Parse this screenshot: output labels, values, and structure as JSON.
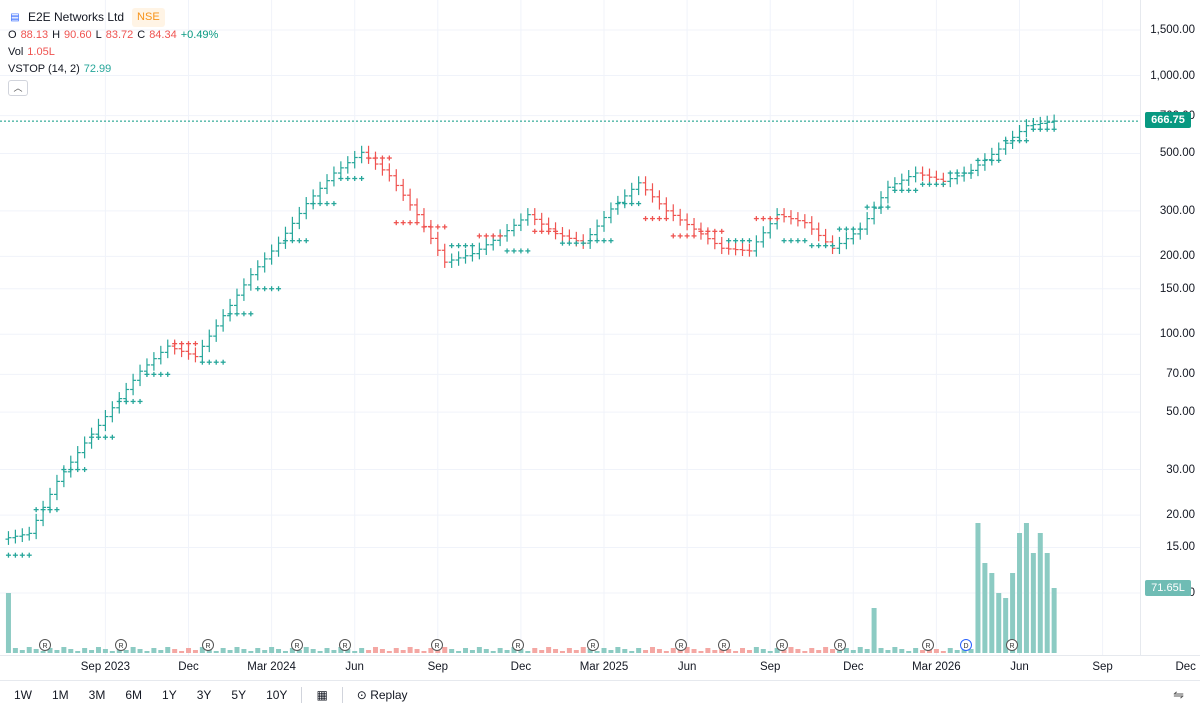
{
  "header": {
    "symbol_icon": "bar-chart-icon",
    "title": "E2E Networks Ltd",
    "exchange": "NSE",
    "o_label": "O",
    "o_value": "88.13",
    "h_label": "H",
    "h_value": "90.60",
    "l_label": "L",
    "l_value": "83.72",
    "c_label": "C",
    "c_value": "84.34",
    "change": "+0.49%",
    "vol_label": "Vol",
    "vol_value": "1.05L",
    "vstop_label": "VSTOP (14, 2)",
    "vstop_value": "72.99",
    "collapse_icon": "chevron-up-icon"
  },
  "price_tag": "666.75",
  "volume_tag": "71.65L",
  "colors": {
    "up": "#26a69a",
    "down": "#ef5350",
    "up_vol": "#8ccbc3",
    "down_vol": "#f4a7a3",
    "accent": "#089981"
  },
  "toolbar": {
    "ranges": [
      "1W",
      "1M",
      "3M",
      "6M",
      "1Y",
      "3Y",
      "5Y",
      "10Y"
    ],
    "calendar_icon": "calendar-icon",
    "replay_label": "Replay",
    "replay_icon": "replay-icon",
    "settings_icon": "sliders-icon"
  },
  "chart_data": {
    "type": "line",
    "title": "E2E Networks Ltd",
    "scale": "log",
    "ylim": [
      7,
      1900
    ],
    "y_ticks": [
      "1,500.00",
      "1,000.00",
      "700.00",
      "500.00",
      "300.00",
      "200.00",
      "150.00",
      "100.00",
      "70.00",
      "50.00",
      "30.00",
      "20.00",
      "15.00",
      "10.00"
    ],
    "y_tick_values": [
      1500,
      1000,
      700,
      500,
      300,
      200,
      150,
      100,
      70,
      50,
      30,
      20,
      15,
      10
    ],
    "x_ticks": [
      "Sep 2023",
      "Dec",
      "Mar 2024",
      "Jun",
      "Sep",
      "Dec",
      "Mar 2025",
      "Jun",
      "Sep",
      "Dec",
      "Mar 2026",
      "Jun",
      "Sep",
      "Dec"
    ],
    "x_tick_months": [
      2,
      5,
      8,
      11,
      14,
      17,
      20,
      23,
      26,
      29,
      32,
      35,
      38,
      41
    ],
    "last_price": 666.75,
    "series": [
      {
        "name": "E2E Networks Ltd",
        "month_index": [
          0,
          1,
          2,
          3,
          4,
          5,
          6,
          7,
          8,
          9,
          10,
          11,
          12,
          13,
          14,
          15,
          16,
          17,
          18,
          19,
          20,
          21,
          22,
          23,
          24,
          25,
          26,
          27,
          28,
          29,
          30,
          31,
          32,
          33,
          34,
          35,
          36,
          37
        ],
        "close": [
          17,
          27,
          38,
          52,
          72,
          90,
          82,
          118,
          170,
          225,
          320,
          420,
          505,
          410,
          290,
          190,
          205,
          240,
          290,
          245,
          225,
          305,
          385,
          300,
          255,
          215,
          210,
          290,
          270,
          215,
          255,
          370,
          420,
          390,
          430,
          520,
          640,
          666.75
        ]
      }
    ],
    "vstop": {
      "name": "VSTOP (14, 2)",
      "values": [
        14,
        21,
        30,
        40,
        55,
        70,
        92,
        78,
        120,
        150,
        230,
        320,
        400,
        480,
        270,
        260,
        220,
        240,
        210,
        250,
        225,
        230,
        320,
        280,
        240,
        250,
        230,
        280,
        230,
        220,
        255,
        310,
        360,
        380,
        420,
        470,
        560,
        620
      ],
      "trend": [
        "up",
        "up",
        "up",
        "up",
        "up",
        "up",
        "down",
        "up",
        "up",
        "up",
        "up",
        "up",
        "up",
        "down",
        "down",
        "down",
        "up",
        "down",
        "up",
        "down",
        "up",
        "up",
        "up",
        "down",
        "down",
        "down",
        "up",
        "down",
        "up",
        "up",
        "up",
        "up",
        "up",
        "up",
        "up",
        "up",
        "up",
        "up"
      ]
    },
    "volume_markers": [
      "R",
      "R",
      "R",
      "R",
      "R",
      "R",
      "R",
      "R",
      "R",
      "R",
      "R",
      "R",
      "R",
      "D",
      "R"
    ]
  }
}
